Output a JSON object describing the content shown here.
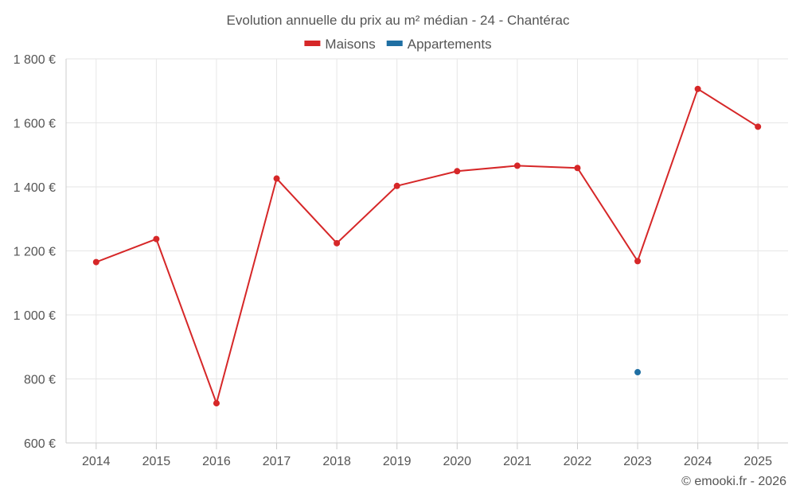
{
  "chart_data": {
    "type": "line",
    "title": "Evolution annuelle du prix au m² médian - 24 - Chantérac",
    "categories": [
      "2014",
      "2015",
      "2016",
      "2017",
      "2018",
      "2019",
      "2020",
      "2021",
      "2022",
      "2023",
      "2024",
      "2025"
    ],
    "series": [
      {
        "name": "Maisons",
        "color": "#d62728",
        "values": [
          1165,
          1237,
          724,
          1426,
          1224,
          1403,
          1449,
          1466,
          1459,
          1168,
          1706,
          1588
        ]
      },
      {
        "name": "Appartements",
        "color": "#1f6fa3",
        "values": [
          null,
          null,
          null,
          null,
          null,
          null,
          null,
          null,
          null,
          821,
          null,
          null
        ]
      }
    ],
    "ylim": [
      600,
      1800
    ],
    "yticks": [
      600,
      800,
      1000,
      1200,
      1400,
      1600,
      1800
    ],
    "ytick_labels": [
      "600 €",
      "800 €",
      "1 000 €",
      "1 200 €",
      "1 400 €",
      "1 600 €",
      "1 800 €"
    ],
    "xlabel": "",
    "ylabel": "",
    "legend_position": "top-center",
    "grid": true
  },
  "credit": "© emooki.fr - 2026"
}
